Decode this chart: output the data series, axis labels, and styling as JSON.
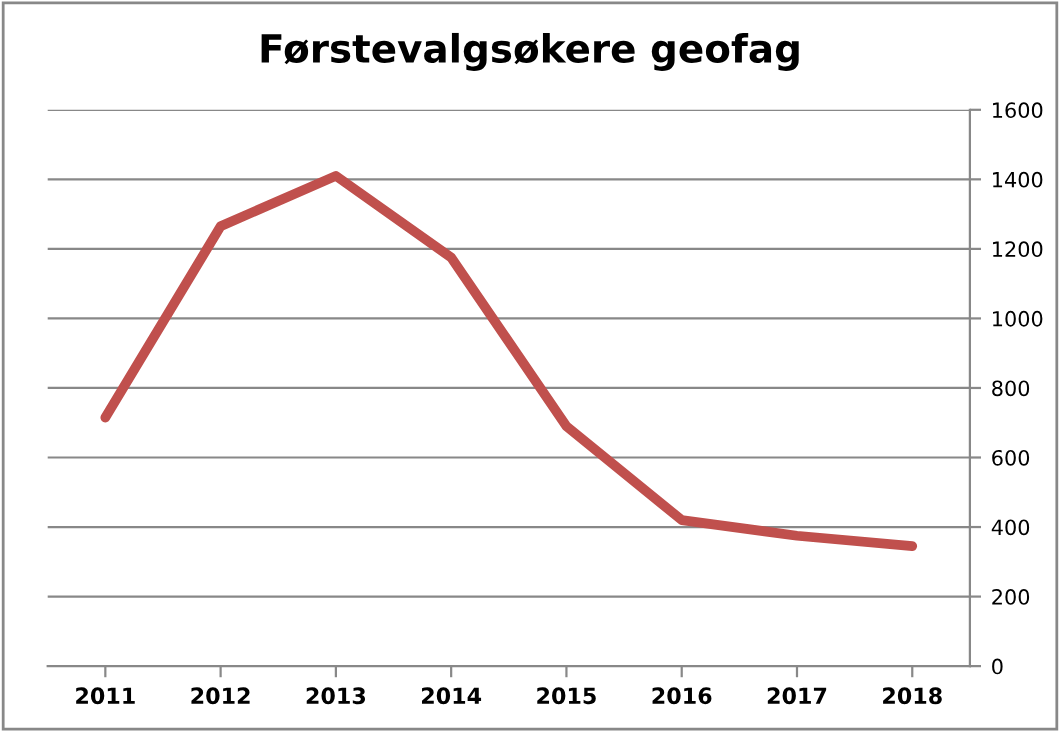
{
  "chart_data": {
    "type": "line",
    "title": "Førstevalgsøkere geofag",
    "categories": [
      "2011",
      "2012",
      "2013",
      "2014",
      "2015",
      "2016",
      "2017",
      "2018"
    ],
    "series": [
      {
        "color": "#c0504d",
        "values": [
          715,
          1265,
          1410,
          1175,
          690,
          420,
          375,
          345
        ]
      }
    ],
    "ylim": [
      0,
      1600
    ],
    "yticks": [
      0,
      200,
      400,
      600,
      800,
      1000,
      1200,
      1400,
      1600
    ],
    "grid": "y",
    "marker": "none",
    "line_style": "solid"
  }
}
